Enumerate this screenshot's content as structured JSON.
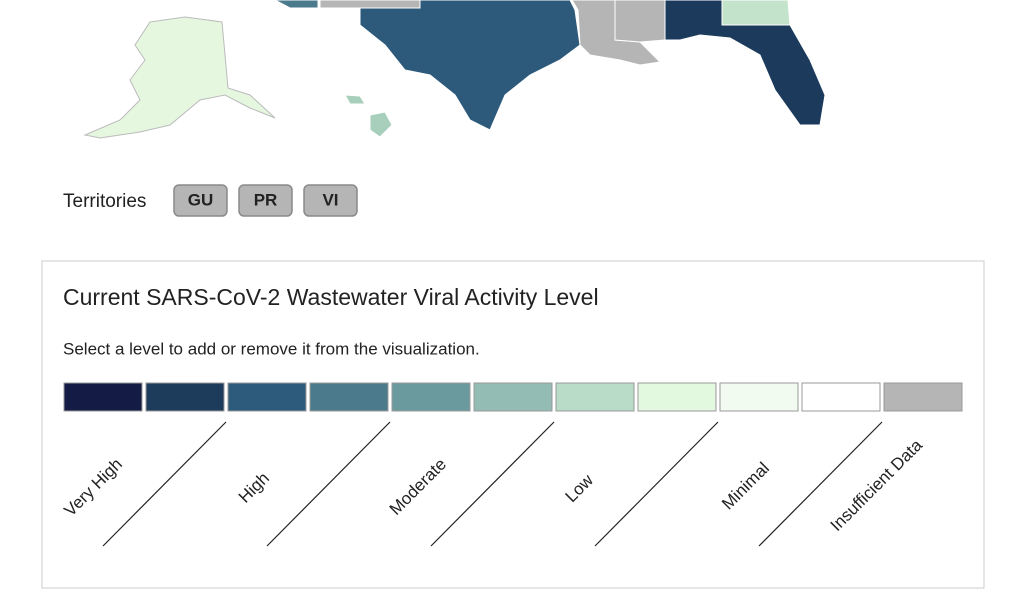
{
  "territories": {
    "label": "Territories",
    "buttons": [
      "GU",
      "PR",
      "VI"
    ]
  },
  "legend": {
    "title": "Current SARS-CoV-2 Wastewater Viral Activity Level",
    "subtitle": "Select a level to add or remove it from the visualization.",
    "swatches": [
      "#141c45",
      "#1d3c5c",
      "#2d5b7c",
      "#4a7a8c",
      "#6a9a9e",
      "#93bdb4",
      "#b9dcc8",
      "#e2f8df",
      "#f2fbef",
      "#ffffff",
      "#b5b5b5"
    ],
    "levels": [
      "Very High",
      "High",
      "Moderate",
      "Low",
      "Minimal",
      "Insufficient Data"
    ]
  }
}
